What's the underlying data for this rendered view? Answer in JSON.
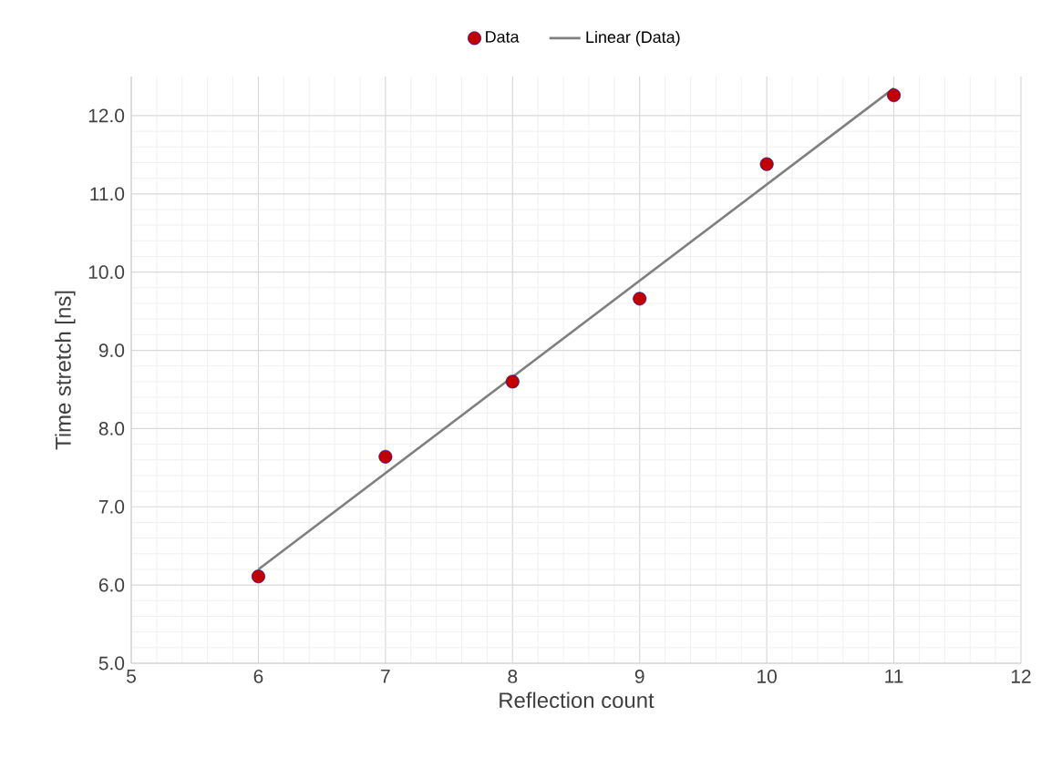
{
  "chart_data": {
    "type": "scatter",
    "xlabel": "Reflection count",
    "ylabel": "Time stretch [ns]",
    "x": [
      6,
      7,
      8,
      9,
      10,
      11
    ],
    "series": [
      {
        "name": "Data",
        "color": "#c00000",
        "marker": "circle",
        "values": [
          6.11,
          7.64,
          8.6,
          9.66,
          11.38,
          12.26
        ]
      },
      {
        "name": "Linear (Data)",
        "type": "line",
        "color": "#7f7f7f",
        "marker": "none",
        "line_style": "solid",
        "x": [
          6,
          11
        ],
        "values": [
          6.2,
          12.35
        ]
      }
    ],
    "xlim": [
      5,
      12
    ],
    "xticks": [
      5,
      6,
      7,
      8,
      9,
      10,
      11,
      12
    ],
    "ylim": [
      5,
      12.5
    ],
    "yticks": [
      {
        "value": 5,
        "label": "5.0"
      },
      {
        "value": 6,
        "label": "6.0"
      },
      {
        "value": 7,
        "label": "7.0"
      },
      {
        "value": 8,
        "label": "8.0"
      },
      {
        "value": 9,
        "label": "9.0"
      },
      {
        "value": 10,
        "label": "10.0"
      },
      {
        "value": 11,
        "label": "11.0"
      },
      {
        "value": 12,
        "label": "12.0"
      }
    ],
    "grid": true,
    "legend": "top"
  }
}
